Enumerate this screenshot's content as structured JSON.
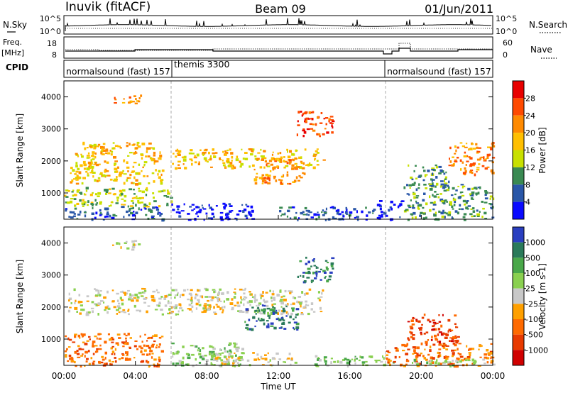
{
  "header": {
    "station": "Inuvik (fitACF)",
    "beam": "Beam 09",
    "date": "01/Jun/2011"
  },
  "noise_panel": {
    "left_label": "N.Sky",
    "right_label": "N.Search",
    "left_ticks": [
      "10^5",
      "10^0"
    ],
    "right_ticks": [
      "10^5",
      "10^0"
    ]
  },
  "freq_panel": {
    "left_label": "Freq.",
    "left_unit": "[MHz]",
    "right_label": "Nave",
    "left_ticks": [
      "18",
      "8"
    ],
    "right_ticks": [
      "60",
      "0"
    ]
  },
  "cpid_panel": {
    "label": "CPID",
    "programs": [
      {
        "name": "normalsound (fast) 157",
        "start_hour": 0
      },
      {
        "name": "themis 3300",
        "start_hour": 6
      },
      {
        "name": "normalsound (fast) 157",
        "start_hour": 18
      }
    ]
  },
  "x_axis": {
    "label": "Time UT",
    "ticks": [
      "00:00",
      "04:00",
      "08:00",
      "12:00",
      "16:00",
      "20:00",
      "00:00"
    ]
  },
  "chart_data": [
    {
      "type": "heatmap",
      "title": "",
      "xlabel": "Time UT",
      "ylabel": "Slant Range [km]",
      "xlim": [
        0,
        24
      ],
      "ylim": [
        180,
        4500
      ],
      "yticks": [
        "1000",
        "2000",
        "3000",
        "4000"
      ],
      "colorbar": {
        "label": "Power [dB]",
        "ticks": [
          "28",
          "24",
          "20",
          "16",
          "12",
          "8",
          "4"
        ],
        "colors": [
          "#e80000",
          "#ff4a00",
          "#ff8a00",
          "#ffbf00",
          "#c8e000",
          "#3a8a52",
          "#2a57a8",
          "#0a0aff"
        ]
      },
      "bands": [
        {
          "t0": 0.0,
          "t1": 5.5,
          "r0": 180,
          "r1": 600,
          "level": 6
        },
        {
          "t0": 0.0,
          "t1": 6.0,
          "r0": 600,
          "r1": 1200,
          "level": 4
        },
        {
          "t0": 0.3,
          "t1": 5.5,
          "r0": 1300,
          "r1": 2600,
          "level": 3
        },
        {
          "t0": 6.0,
          "t1": 10.5,
          "r0": 180,
          "r1": 700,
          "level": 7
        },
        {
          "t0": 6.0,
          "t1": 14.5,
          "r0": 1800,
          "r1": 2400,
          "level": 3
        },
        {
          "t0": 10.5,
          "t1": 13.5,
          "r0": 1300,
          "r1": 2100,
          "level": 2
        },
        {
          "t0": 12.0,
          "t1": 17.5,
          "r0": 180,
          "r1": 600,
          "level": 6
        },
        {
          "t0": 13.0,
          "t1": 15.0,
          "r0": 2800,
          "r1": 3600,
          "level": 1
        },
        {
          "t0": 17.5,
          "t1": 19.0,
          "r0": 180,
          "r1": 800,
          "level": 7
        },
        {
          "t0": 19.0,
          "t1": 24.0,
          "r0": 180,
          "r1": 1300,
          "level": 5
        },
        {
          "t0": 19.2,
          "t1": 21.5,
          "r0": 1200,
          "r1": 1900,
          "level": 5
        },
        {
          "t0": 21.5,
          "t1": 24.0,
          "r0": 1600,
          "r1": 2600,
          "level": 2
        },
        {
          "t0": 2.7,
          "t1": 4.3,
          "r0": 3800,
          "r1": 4100,
          "level": 2
        }
      ]
    },
    {
      "type": "heatmap",
      "title": "",
      "xlabel": "Time UT",
      "ylabel": "Slant Range [km]",
      "xlim": [
        0,
        24
      ],
      "ylim": [
        180,
        4500
      ],
      "yticks": [
        "1000",
        "2000",
        "3000",
        "4000"
      ],
      "colorbar": {
        "label": "Velocity [m s-1]",
        "ticks": [
          "1000",
          "500",
          "100",
          "25",
          "-25",
          "-100",
          "-500",
          "-1000"
        ],
        "colors": [
          "#2a3fc0",
          "#2a7a5a",
          "#4aa84a",
          "#8ad050",
          "#c8c8c8",
          "#ffa000",
          "#ff6a00",
          "#e83a00",
          "#d00000"
        ]
      },
      "bands": [
        {
          "t0": 0.0,
          "t1": 5.5,
          "r0": 180,
          "r1": 1200,
          "level": 6
        },
        {
          "t0": 0.2,
          "t1": 14.5,
          "r0": 1800,
          "r1": 2600,
          "level": 4
        },
        {
          "t0": 6.0,
          "t1": 10.0,
          "r0": 180,
          "r1": 900,
          "level": 3
        },
        {
          "t0": 8.0,
          "t1": 13.0,
          "r0": 180,
          "r1": 600,
          "level": 4
        },
        {
          "t0": 10.0,
          "t1": 13.0,
          "r0": 1300,
          "r1": 2100,
          "level": 1
        },
        {
          "t0": 13.0,
          "t1": 15.0,
          "r0": 2800,
          "r1": 3600,
          "level": 1
        },
        {
          "t0": 14.0,
          "t1": 18.5,
          "r0": 180,
          "r1": 500,
          "level": 3
        },
        {
          "t0": 18.0,
          "t1": 24.0,
          "r0": 180,
          "r1": 900,
          "level": 6
        },
        {
          "t0": 19.2,
          "t1": 22.0,
          "r0": 900,
          "r1": 1800,
          "level": 7
        },
        {
          "t0": 19.0,
          "t1": 24.0,
          "r0": 180,
          "r1": 400,
          "level": 3
        },
        {
          "t0": 2.7,
          "t1": 4.3,
          "r0": 3800,
          "r1": 4100,
          "level": 4
        }
      ]
    }
  ]
}
